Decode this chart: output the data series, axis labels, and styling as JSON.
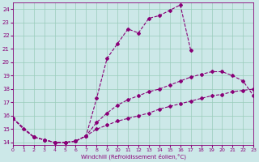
{
  "xlabel": "Windchill (Refroidissement éolien,°C)",
  "bg_color": "#cce8e8",
  "grid_color": "#99ccbb",
  "line_color": "#880077",
  "xlim": [
    0,
    23
  ],
  "ylim": [
    13.8,
    24.5
  ],
  "ytick_vals": [
    14,
    15,
    16,
    17,
    18,
    19,
    20,
    21,
    22,
    23,
    24
  ],
  "xtick_vals": [
    0,
    1,
    2,
    3,
    4,
    5,
    6,
    7,
    8,
    9,
    10,
    11,
    12,
    13,
    14,
    15,
    16,
    17,
    18,
    19,
    20,
    21,
    22,
    23
  ],
  "series1_x": [
    0,
    1,
    2,
    3,
    4,
    5,
    6,
    7,
    8,
    9,
    10,
    11,
    12,
    13,
    14,
    15,
    16,
    17
  ],
  "series1_y": [
    15.8,
    15.0,
    14.4,
    14.2,
    14.0,
    14.0,
    14.1,
    14.5,
    17.3,
    20.3,
    21.4,
    22.5,
    22.2,
    23.3,
    23.5,
    23.9,
    24.3,
    20.9
  ],
  "series2_x": [
    0,
    2,
    3,
    4,
    5,
    6,
    7,
    8,
    9,
    10,
    11,
    12,
    13,
    14,
    15,
    16,
    17,
    18,
    19,
    20,
    21,
    22,
    23
  ],
  "series2_y": [
    15.8,
    14.4,
    14.2,
    14.0,
    14.0,
    14.1,
    14.5,
    15.5,
    16.2,
    16.8,
    17.2,
    17.5,
    17.8,
    18.0,
    18.3,
    18.6,
    18.9,
    19.1,
    19.3,
    19.3,
    19.0,
    18.6,
    17.5
  ],
  "series3_x": [
    0,
    2,
    3,
    4,
    5,
    6,
    7,
    8,
    9,
    10,
    11,
    12,
    13,
    14,
    15,
    16,
    17,
    18,
    19,
    20,
    21,
    22,
    23
  ],
  "series3_y": [
    15.8,
    14.4,
    14.2,
    14.0,
    14.0,
    14.1,
    14.5,
    15.0,
    15.3,
    15.6,
    15.8,
    16.0,
    16.2,
    16.5,
    16.7,
    16.9,
    17.1,
    17.3,
    17.5,
    17.6,
    17.8,
    17.9,
    18.0
  ]
}
